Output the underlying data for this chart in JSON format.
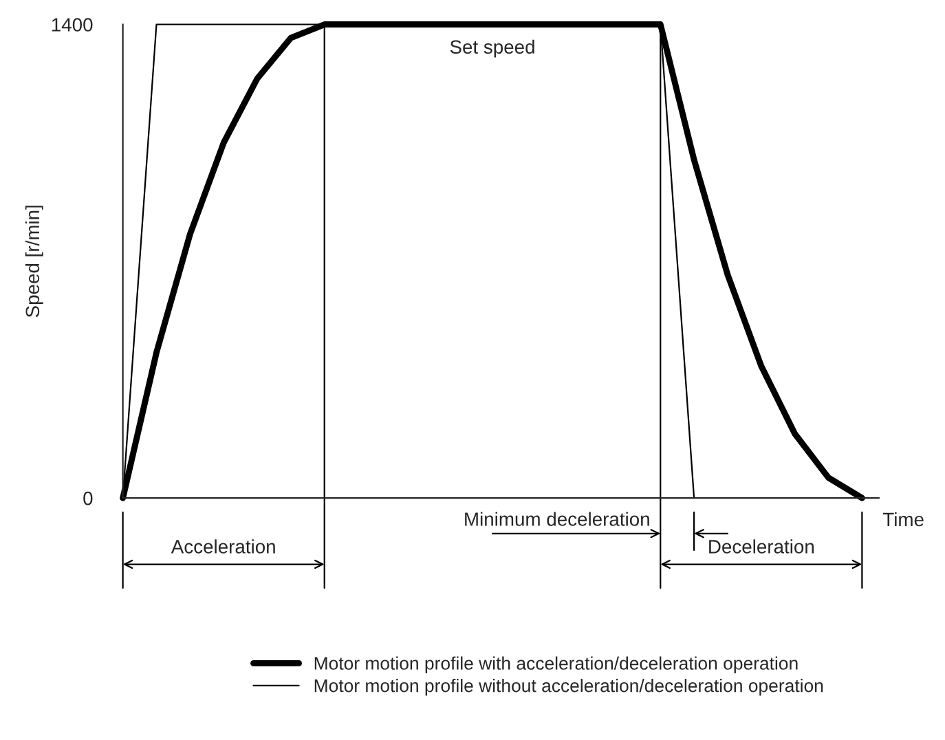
{
  "chart_data": {
    "type": "line",
    "ylabel": "Speed [r/min]",
    "xlabel": "Time",
    "categories": [
      null,
      null,
      null,
      null,
      null,
      null,
      null,
      null,
      null,
      null,
      null,
      null,
      null,
      null,
      null,
      null,
      null,
      null,
      null,
      null,
      null,
      null,
      null
    ],
    "series": [
      {
        "name": "Motor motion profile with acceleration/deceleration operation",
        "color": "#000000",
        "values": [
          0,
          430,
          780,
          1050,
          1240,
          1360,
          1400,
          1400,
          1400,
          1400,
          1400,
          1400,
          1400,
          1400,
          1400,
          1400,
          1400,
          1000,
          660,
          390,
          190,
          60,
          0
        ]
      },
      {
        "name": "Motor motion profile without acceleration/deceleration operation",
        "color": "#000000",
        "values": [
          0,
          1400,
          1400,
          1400,
          1400,
          1400,
          1400,
          1400,
          1400,
          1400,
          1400,
          1400,
          1400,
          1400,
          1400,
          1400,
          1400,
          0,
          null,
          null,
          null,
          null,
          null
        ]
      }
    ],
    "ylim": [
      0,
      1400
    ],
    "yticks": [
      0,
      1400
    ],
    "legend": "bottom",
    "grid": false,
    "annotations": [
      "Set speed",
      "Acceleration",
      "Minimum deceleration",
      "Deceleration"
    ]
  }
}
